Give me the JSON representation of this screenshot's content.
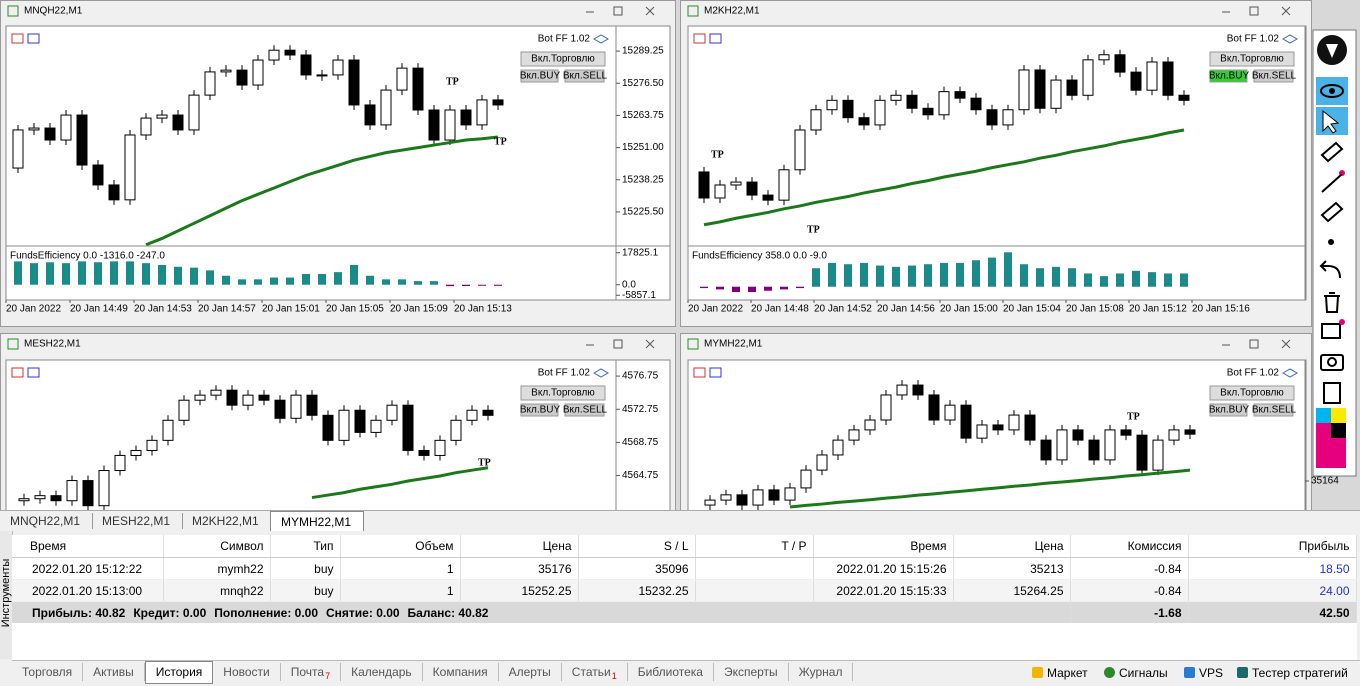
{
  "windows": [
    {
      "title": "MNQH22,M1",
      "bot": "Bot FF 1.02",
      "trade_button": "Вкл.Торговлю",
      "buy_button": "Вкл.BUY",
      "sell_button": "Вкл.SELL",
      "ylim": [
        15212.4,
        15298.4
      ],
      "price_ticks": [
        15289.25,
        {
          "value": 15276.5,
          "label": "15276.50"
        },
        15263.75,
        {
          "value": 15251,
          "label": "15251.00"
        },
        15238.25,
        {
          "value": 15225.5,
          "label": "15225.50"
        }
      ],
      "open": 15242.9,
      "closes": [
        15258.0,
        15258.75,
        15254.0,
        15263.9,
        15244.1,
        15236.2,
        15230.3,
        15256.0,
        15262.7,
        15263.9,
        15258.0,
        15271.8,
        15281.0,
        15281.7,
        15275.8,
        15285.7,
        15289.6,
        15287.7,
        15279.8,
        15279.8,
        15285.7,
        15267.9,
        15260.0,
        15273.8,
        15282.5,
        15265.9,
        15254.0,
        15265.9,
        15260.0,
        15269.9,
        15267.9
      ],
      "ma": [
        null,
        null,
        null,
        null,
        null,
        null,
        null,
        null,
        15212.5,
        15215,
        15218,
        15221,
        15224,
        15227,
        15230,
        15232.5,
        15235,
        15237.5,
        15240,
        15242,
        15244,
        15246,
        15247.5,
        15249,
        15250,
        15251,
        15252,
        15253,
        15254,
        15254.5,
        15255.2
      ],
      "indicator_label": "FundsEfficiency 0.0 -1316.0 -247.0",
      "indicator_ylim": [
        -8500,
        21000
      ],
      "indicator_ticks": [
        17825.1,
        {
          "value": 0,
          "label": "0.0"
        },
        -5857.1
      ],
      "indicator": [
        13000,
        12000,
        12500,
        12000,
        13000,
        12500,
        13000,
        13000,
        12000,
        11000,
        10000,
        9500,
        8000,
        5000,
        3000,
        3000,
        4000,
        4000,
        6000,
        6000,
        7000,
        11000,
        5000,
        3000,
        3000,
        2000,
        2000,
        -800,
        -700,
        -500,
        -600
      ],
      "times": [
        "20 Jan 2022",
        "20 Jan 14:49",
        "20 Jan 14:53",
        "20 Jan 14:57",
        "20 Jan 15:01",
        "20 Jan 15:05",
        "20 Jan 15:09",
        "20 Jan 15:13"
      ],
      "tp_labels": [
        "TP",
        "TP"
      ]
    },
    {
      "title": "M2KH22,M1",
      "bot": "Bot FF 1.02",
      "trade_button": "Вкл.Торговлю",
      "buy_button": "Вкл.BUY",
      "sell_button": "Вкл.SELL",
      "ylim": [
        2050,
        2080
      ],
      "open": 2060.1,
      "closes": [
        2056.5,
        2058.3,
        2058.7,
        2056.9,
        2056.2,
        2060.4,
        2065.9,
        2068.7,
        2070.0,
        2067.6,
        2066.6,
        2070.0,
        2070.7,
        2068.9,
        2068.0,
        2071.2,
        2070.3,
        2068.7,
        2066.6,
        2068.7,
        2074.2,
        2068.9,
        2072.8,
        2070.7,
        2075.6,
        2076.3,
        2073.9,
        2071.4,
        2075.3,
        2070.7,
        2070.0
      ],
      "ma": [
        2052.8,
        2053.2,
        2053.7,
        2054.1,
        2054.5,
        2055.0,
        2055.4,
        2055.9,
        2056.3,
        2056.7,
        2057.2,
        2057.6,
        2058.0,
        2058.5,
        2058.9,
        2059.4,
        2059.8,
        2060.2,
        2060.7,
        2061.1,
        2061.5,
        2062.0,
        2062.4,
        2062.9,
        2063.3,
        2063.7,
        2064.2,
        2064.6,
        2065.0,
        2065.5,
        2065.9
      ],
      "indicator_label": "FundsEfficiency 358.0 0.0 -9.0",
      "indicator_ylim": [
        -10,
        30
      ],
      "indicator": [
        -1,
        -2,
        -4,
        -4,
        -3,
        -2,
        -1,
        14,
        18,
        17,
        18,
        16,
        15,
        16,
        17,
        18,
        18,
        20,
        22,
        26,
        17,
        14,
        15,
        14,
        10,
        8,
        10,
        12,
        11,
        10,
        10
      ],
      "times": [
        "20 Jan 2022",
        "20 Jan 14:48",
        "20 Jan 14:52",
        "20 Jan 14:56",
        "20 Jan 15:00",
        "20 Jan 15:04",
        "20 Jan 15:08",
        "20 Jan 15:12",
        "20 Jan 15:16"
      ],
      "tp_labels": [
        "TP",
        "TP"
      ]
    },
    {
      "title": "MESH22,M1",
      "bot": "Bot FF 1.02",
      "trade_button": "Вкл.Торговлю",
      "buy_button": "Вкл.BUY",
      "sell_button": "Вкл.SELL",
      "ylim": [
        4560.6,
        4578.45
      ],
      "price_ticks": [
        4576.75,
        4572.75,
        4568.75,
        4564.75
      ],
      "open": 4561.72,
      "closes": [
        4561.96,
        4562.33,
        4561.72,
        4564.15,
        4561.12,
        4565.36,
        4567.18,
        4567.78,
        4569.0,
        4571.42,
        4573.84,
        4574.45,
        4575.05,
        4573.24,
        4574.45,
        4573.84,
        4571.66,
        4574.45,
        4572.02,
        4569.0,
        4572.63,
        4569.96,
        4571.42,
        4573.24,
        4567.78,
        4567.18,
        4569.0,
        4571.42,
        4572.63,
        4572.02
      ],
      "ma": [
        null,
        null,
        null,
        null,
        null,
        null,
        null,
        null,
        null,
        null,
        null,
        null,
        null,
        null,
        null,
        null,
        null,
        null,
        4562.1,
        4562.4,
        4562.7,
        4563.1,
        4563.4,
        4563.7,
        4564.1,
        4564.4,
        4564.7,
        4565.1,
        4565.4,
        4565.7
      ],
      "tp_labels": [
        "TP"
      ]
    },
    {
      "title": "MYMH22,M1",
      "bot": "Bot FF 1.02",
      "trade_button": "Вкл.Торговлю",
      "buy_button": "Вкл.BUY",
      "sell_button": "Вкл.SELL",
      "ylim": [
        35155.2,
        35200.1
      ],
      "price_ticks": [
        35164
      ],
      "open": 35156.7,
      "closes": [
        35158.2,
        35159.8,
        35156.7,
        35161.3,
        35158.2,
        35161.9,
        35167.3,
        35171.9,
        35176.4,
        35179.5,
        35182.5,
        35190.1,
        35193.1,
        35190.1,
        35182.5,
        35187.0,
        35177.0,
        35181.0,
        35179.5,
        35184.0,
        35176.4,
        35170.4,
        35179.5,
        35176.4,
        35170.4,
        35179.5,
        35177.9,
        35167.3,
        35176.4,
        35179.5,
        35178.2
      ],
      "ma": [
        null,
        null,
        null,
        null,
        null,
        35156.1,
        35156.6,
        35157.0,
        35157.5,
        35157.9,
        35158.3,
        35158.8,
        35159.2,
        35159.7,
        35160.1,
        35160.6,
        35161.0,
        35161.5,
        35161.9,
        35162.4,
        35162.8,
        35163.3,
        35163.7,
        35164.1,
        35164.6,
        35165.0,
        35165.5,
        35165.9,
        35166.4,
        35166.8,
        35167.3
      ],
      "tp_labels": [
        "TP"
      ]
    }
  ],
  "chart_tabs": [
    "MNQH22,M1",
    "MESH22,M1",
    "M2KH22,M1",
    "MYMH22,M1"
  ],
  "table": {
    "headers": [
      "Время",
      "Символ",
      "Тип",
      "Объем",
      "Цена",
      "S / L",
      "T / P",
      "Время",
      "Цена",
      "Комиссия",
      "Прибыль"
    ],
    "rows": [
      [
        "2022.01.20 15:12:22",
        "mymh22",
        "buy",
        "1",
        "35176",
        "35096",
        null,
        "2022.01.20 15:15:26",
        "35213",
        "-0.84",
        "18.50"
      ],
      [
        "2022.01.20 15:13:00",
        "mnqh22",
        "buy",
        "1",
        "15252.25",
        "15232.25",
        null,
        "2022.01.20 15:15:33",
        "15264.25",
        "-0.84",
        "24.00"
      ]
    ],
    "summary": {
      "text": [
        "Прибыль: 40.82",
        "Кредит: 0.00",
        "Пополнение: 0.00",
        "Снятие: 0.00",
        "Баланс: 40.82"
      ],
      "commission": "-1.68",
      "profit": "42.50"
    }
  },
  "side_label": "Инструменты",
  "bottom_tabs": [
    {
      "label": "Торговля"
    },
    {
      "label": "Активы"
    },
    {
      "label": "История"
    },
    {
      "label": "Новости"
    },
    {
      "label": "Почта",
      "badge": "7"
    },
    {
      "label": "Календарь"
    },
    {
      "label": "Компания"
    },
    {
      "label": "Алерты"
    },
    {
      "label": "Статьи",
      "badge": "1"
    },
    {
      "label": "Библиотека"
    },
    {
      "label": "Эксперты"
    },
    {
      "label": "Журнал"
    }
  ],
  "services": [
    "Маркет",
    "Сигналы",
    "VPS",
    "Тестер стратегий"
  ]
}
